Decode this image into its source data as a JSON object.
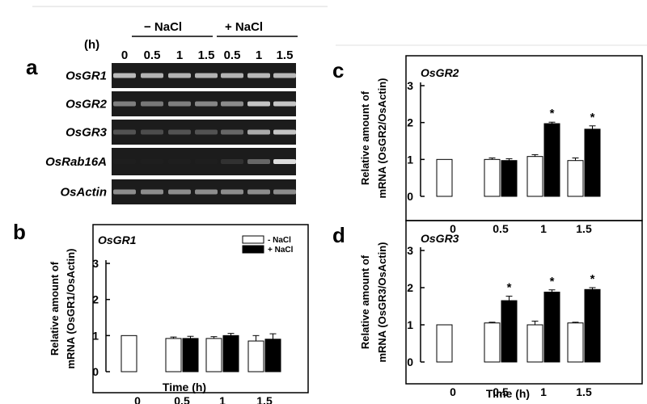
{
  "panel_labels": [
    "a",
    "b",
    "c",
    "d"
  ],
  "gel": {
    "time_unit": "(h)",
    "condition_minus": "− NaCl",
    "condition_plus": "+ NaCl",
    "lanes": [
      "0",
      "0.5",
      "1",
      "1.5",
      "0.5",
      "1",
      "1.5"
    ],
    "genes": [
      {
        "name": "OsGR1",
        "intensity": [
          0.85,
          0.82,
          0.82,
          0.82,
          0.82,
          0.84,
          0.84
        ]
      },
      {
        "name": "OsGR2",
        "intensity": [
          0.65,
          0.62,
          0.65,
          0.68,
          0.7,
          0.88,
          0.88
        ]
      },
      {
        "name": "OsGR3",
        "intensity": [
          0.45,
          0.42,
          0.45,
          0.45,
          0.55,
          0.8,
          0.88
        ]
      },
      {
        "name": "OsRab16A",
        "intensity": [
          0.02,
          0.02,
          0.02,
          0.03,
          0.25,
          0.55,
          0.95
        ]
      },
      {
        "name": "OsActin",
        "intensity": [
          0.7,
          0.7,
          0.7,
          0.7,
          0.7,
          0.7,
          0.7
        ]
      }
    ]
  },
  "chart_data": [
    {
      "panel": "b",
      "type": "bar",
      "title": "OsGR1",
      "xlabel": "Time (h)",
      "ylabel": [
        "Relative amount of",
        "mRNA (OsGR1/OsActin)"
      ],
      "categories": [
        "0",
        "0.5",
        "1",
        "1.5"
      ],
      "ylim": [
        0,
        3
      ],
      "yticks": [
        0,
        1,
        2,
        3
      ],
      "legend": {
        "placement": "top-right",
        "entries": [
          "- NaCl",
          "+ NaCl"
        ]
      },
      "series": [
        {
          "name": "- NaCl",
          "color": "#ffffff",
          "values": [
            1.0,
            0.92,
            0.92,
            0.85
          ],
          "errors": [
            0,
            0.04,
            0.05,
            0.15
          ]
        },
        {
          "name": "+ NaCl",
          "color": "#000000",
          "values": [
            null,
            0.92,
            1.0,
            0.9
          ],
          "errors": [
            0,
            0.06,
            0.06,
            0.15
          ]
        }
      ],
      "significant": []
    },
    {
      "panel": "c",
      "type": "bar",
      "title": "OsGR2",
      "xlabel": "",
      "ylabel": [
        "Relative amount of",
        "mRNA (OsGR2/OsActin)"
      ],
      "categories": [
        "0",
        "0.5",
        "1",
        "1.5"
      ],
      "ylim": [
        0,
        3
      ],
      "yticks": [
        0,
        1,
        2,
        3
      ],
      "legend": null,
      "series": [
        {
          "name": "- NaCl",
          "color": "#ffffff",
          "values": [
            1.0,
            1.0,
            1.08,
            0.97
          ],
          "errors": [
            0,
            0.04,
            0.05,
            0.07
          ]
        },
        {
          "name": "+ NaCl",
          "color": "#000000",
          "values": [
            null,
            0.97,
            1.97,
            1.82
          ],
          "errors": [
            0,
            0.05,
            0.04,
            0.09
          ]
        }
      ],
      "significant": [
        {
          "category": "1",
          "label": "*"
        },
        {
          "category": "1.5",
          "label": "*"
        }
      ]
    },
    {
      "panel": "d",
      "type": "bar",
      "title": "OsGR3",
      "xlabel": "Time (h)",
      "ylabel": [
        "Relative amount of",
        "mRNA (OsGR3/OsActin)"
      ],
      "categories": [
        "0",
        "0.5",
        "1",
        "1.5"
      ],
      "ylim": [
        0,
        3
      ],
      "yticks": [
        0,
        1,
        2,
        3
      ],
      "legend": null,
      "series": [
        {
          "name": "- NaCl",
          "color": "#ffffff",
          "values": [
            1.0,
            1.05,
            1.0,
            1.05
          ],
          "errors": [
            0,
            0.02,
            0.1,
            0.02
          ]
        },
        {
          "name": "+ NaCl",
          "color": "#000000",
          "values": [
            null,
            1.65,
            1.88,
            1.95
          ],
          "errors": [
            0,
            0.12,
            0.06,
            0.05
          ]
        }
      ],
      "significant": [
        {
          "category": "0.5",
          "label": "*"
        },
        {
          "category": "1",
          "label": "*"
        },
        {
          "category": "1.5",
          "label": "*"
        }
      ]
    }
  ]
}
